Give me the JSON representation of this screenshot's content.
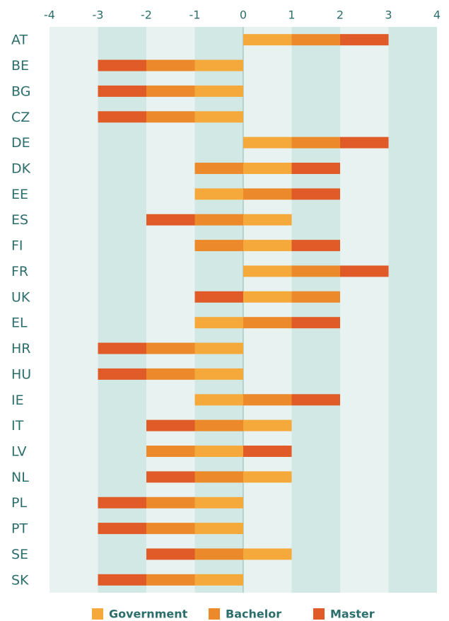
{
  "chart_data": {
    "type": "stacked-bar-horizontal",
    "categories": [
      "AT",
      "BE",
      "BG",
      "CZ",
      "DE",
      "DK",
      "EE",
      "ES",
      "FI",
      "FR",
      "UK",
      "EL",
      "HR",
      "HU",
      "IE",
      "IT",
      "LV",
      "NL",
      "PL",
      "PT",
      "SE",
      "SK"
    ],
    "series": [
      {
        "name": "Government",
        "color": "#f6a93b",
        "values": [
          1,
          -1,
          -1,
          -1,
          1,
          1,
          -1,
          1,
          1,
          1,
          1,
          -1,
          -1,
          -1,
          -1,
          1,
          -1,
          1,
          -1,
          -1,
          1,
          -1
        ]
      },
      {
        "name": "Bachelor",
        "color": "#ec8a2b",
        "values": [
          1,
          -1,
          -1,
          -1,
          1,
          -1,
          1,
          -1,
          -1,
          1,
          1,
          1,
          -1,
          -1,
          1,
          -1,
          -1,
          -1,
          -1,
          -1,
          -1,
          -1
        ]
      },
      {
        "name": "Master",
        "color": "#e05b27",
        "values": [
          1,
          -1,
          -1,
          -1,
          1,
          1,
          1,
          -1,
          1,
          1,
          -1,
          1,
          -1,
          -1,
          1,
          -1,
          1,
          -1,
          -1,
          -1,
          -1,
          -1
        ]
      }
    ],
    "xlim": [
      -4,
      4
    ],
    "xticks": [
      -4,
      -3,
      -2,
      -1,
      0,
      1,
      2,
      3,
      4
    ],
    "legend": "bottom"
  }
}
